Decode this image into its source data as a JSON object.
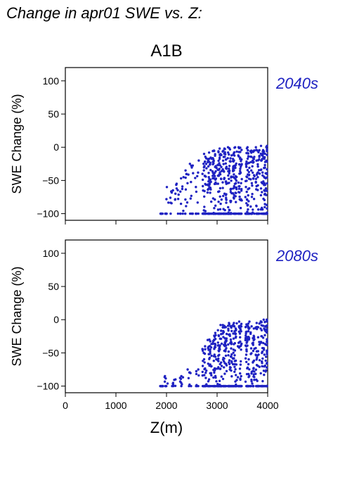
{
  "figure": {
    "title": "Change in apr01 SWE vs. Z:",
    "scenario": "A1B"
  },
  "colors": {
    "points": "#1f22c2",
    "period_label": "#1f22c2",
    "axis": "#000000"
  },
  "chart_data": [
    {
      "type": "scatter",
      "period": "2040s",
      "xlabel": "",
      "ylabel": "SWE Change (%)",
      "xlim": [
        0,
        4000
      ],
      "ylim": [
        -110,
        120
      ],
      "xticks": [
        0,
        1000,
        2000,
        3000,
        4000
      ],
      "yticks": [
        -100,
        -50,
        0,
        50,
        100
      ],
      "show_xtick_labels": false,
      "grid": false,
      "columns": [
        {
          "x": 1900,
          "ymin": -100,
          "ymax": -100,
          "n": 6
        },
        {
          "x": 2000,
          "ymin": -100,
          "ymax": -60,
          "n": 8
        },
        {
          "x": 2100,
          "ymin": -100,
          "ymax": -65,
          "n": 8
        },
        {
          "x": 2200,
          "ymin": -100,
          "ymax": -55,
          "n": 10
        },
        {
          "x": 2300,
          "ymin": -100,
          "ymax": -45,
          "n": 10
        },
        {
          "x": 2400,
          "ymin": -100,
          "ymax": -35,
          "n": 12
        },
        {
          "x": 2500,
          "ymin": -100,
          "ymax": -25,
          "n": 12
        },
        {
          "x": 2600,
          "ymin": -100,
          "ymax": -20,
          "n": 12
        },
        {
          "x": 2750,
          "ymin": -100,
          "ymax": -10,
          "n": 35
        },
        {
          "x": 2850,
          "ymin": -100,
          "ymax": -8,
          "n": 45
        },
        {
          "x": 2950,
          "ymin": -100,
          "ymax": -5,
          "n": 45
        },
        {
          "x": 3050,
          "ymin": -100,
          "ymax": -2,
          "n": 55
        },
        {
          "x": 3150,
          "ymin": -100,
          "ymax": -2,
          "n": 55
        },
        {
          "x": 3250,
          "ymin": -100,
          "ymax": 0,
          "n": 55
        },
        {
          "x": 3350,
          "ymin": -100,
          "ymax": 0,
          "n": 55
        },
        {
          "x": 3450,
          "ymin": -100,
          "ymax": 0,
          "n": 50
        },
        {
          "x": 3600,
          "ymin": -100,
          "ymax": 0,
          "n": 60
        },
        {
          "x": 3700,
          "ymin": -100,
          "ymax": -5,
          "n": 40
        },
        {
          "x": 3800,
          "ymin": -100,
          "ymax": 0,
          "n": 40
        },
        {
          "x": 3900,
          "ymin": -100,
          "ymax": 2,
          "n": 50
        },
        {
          "x": 3980,
          "ymin": -100,
          "ymax": 2,
          "n": 50
        }
      ]
    },
    {
      "type": "scatter",
      "period": "2080s",
      "xlabel": "Z(m)",
      "ylabel": "SWE Change (%)",
      "xlim": [
        0,
        4000
      ],
      "ylim": [
        -110,
        120
      ],
      "xticks": [
        0,
        1000,
        2000,
        3000,
        4000
      ],
      "yticks": [
        -100,
        -50,
        0,
        50,
        100
      ],
      "show_xtick_labels": true,
      "grid": false,
      "columns": [
        {
          "x": 1900,
          "ymin": -100,
          "ymax": -100,
          "n": 8
        },
        {
          "x": 2000,
          "ymin": -100,
          "ymax": -85,
          "n": 8
        },
        {
          "x": 2150,
          "ymin": -100,
          "ymax": -90,
          "n": 8
        },
        {
          "x": 2300,
          "ymin": -100,
          "ymax": -85,
          "n": 8
        },
        {
          "x": 2450,
          "ymin": -100,
          "ymax": -75,
          "n": 8
        },
        {
          "x": 2600,
          "ymin": -100,
          "ymax": -75,
          "n": 8
        },
        {
          "x": 2750,
          "ymin": -100,
          "ymax": -40,
          "n": 30
        },
        {
          "x": 2850,
          "ymin": -100,
          "ymax": -30,
          "n": 35
        },
        {
          "x": 2950,
          "ymin": -100,
          "ymax": -20,
          "n": 40
        },
        {
          "x": 3050,
          "ymin": -100,
          "ymax": -8,
          "n": 50
        },
        {
          "x": 3150,
          "ymin": -100,
          "ymax": -8,
          "n": 50
        },
        {
          "x": 3250,
          "ymin": -100,
          "ymax": -5,
          "n": 50
        },
        {
          "x": 3350,
          "ymin": -100,
          "ymax": -5,
          "n": 50
        },
        {
          "x": 3450,
          "ymin": -100,
          "ymax": -3,
          "n": 45
        },
        {
          "x": 3600,
          "ymin": -100,
          "ymax": -3,
          "n": 60
        },
        {
          "x": 3700,
          "ymin": -100,
          "ymax": -10,
          "n": 40
        },
        {
          "x": 3800,
          "ymin": -100,
          "ymax": -5,
          "n": 40
        },
        {
          "x": 3900,
          "ymin": -100,
          "ymax": 0,
          "n": 45
        },
        {
          "x": 3980,
          "ymin": -100,
          "ymax": 0,
          "n": 45
        }
      ]
    }
  ]
}
